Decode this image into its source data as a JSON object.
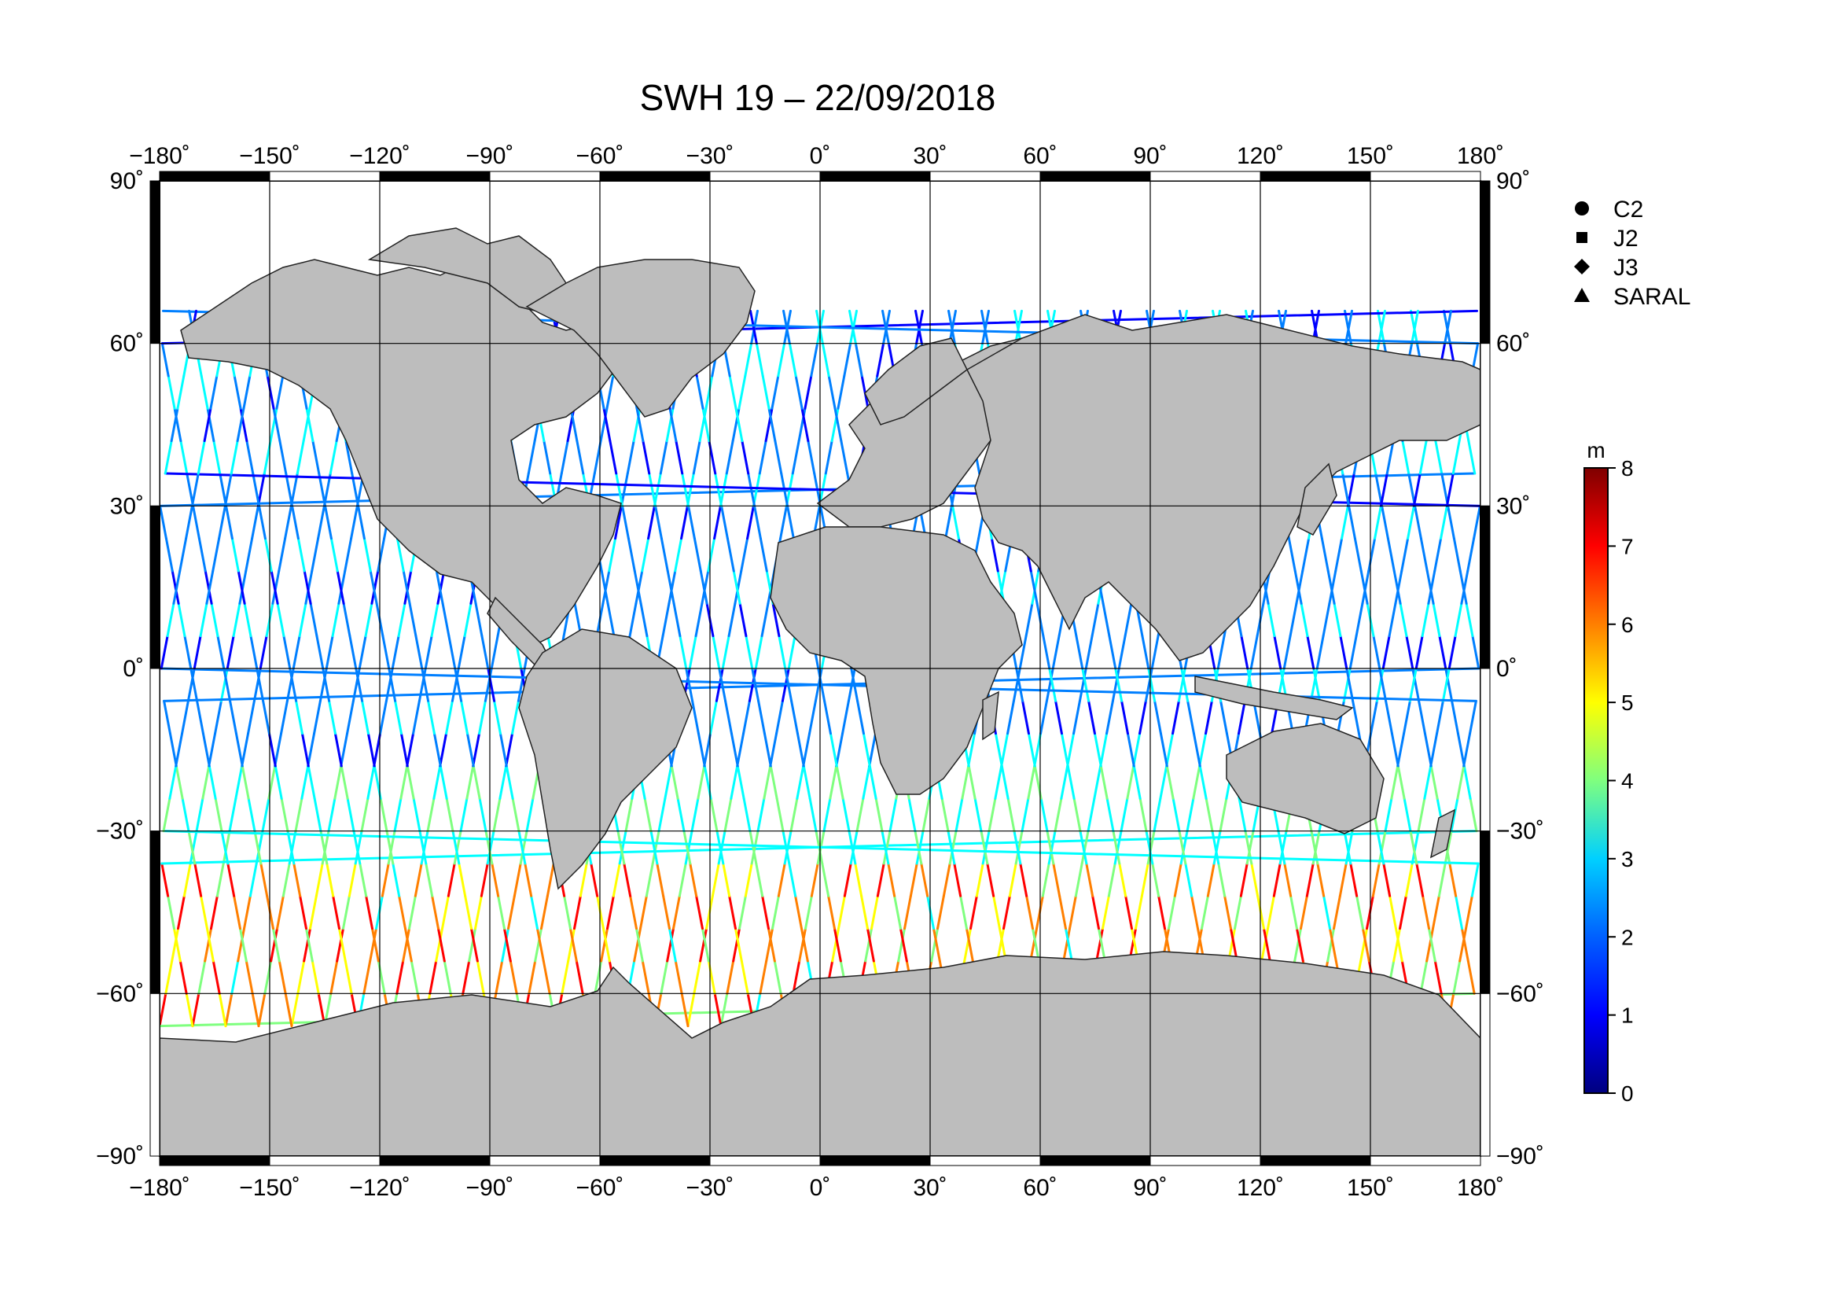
{
  "title": "SWH 19 – 22/09/2018",
  "lon_ticks": [
    {
      "value": -180,
      "label": "−180˚"
    },
    {
      "value": -150,
      "label": "−150˚"
    },
    {
      "value": -120,
      "label": "−120˚"
    },
    {
      "value": -90,
      "label": "−90˚"
    },
    {
      "value": -60,
      "label": "−60˚"
    },
    {
      "value": -30,
      "label": "−30˚"
    },
    {
      "value": 0,
      "label": "0˚"
    },
    {
      "value": 30,
      "label": "30˚"
    },
    {
      "value": 60,
      "label": "60˚"
    },
    {
      "value": 90,
      "label": "90˚"
    },
    {
      "value": 120,
      "label": "120˚"
    },
    {
      "value": 150,
      "label": "150˚"
    },
    {
      "value": 180,
      "label": "180˚"
    }
  ],
  "lat_ticks_left": [
    {
      "value": 90,
      "label": "90˚"
    },
    {
      "value": 60,
      "label": "60˚"
    },
    {
      "value": 30,
      "label": "30˚"
    },
    {
      "value": 0,
      "label": "0˚"
    },
    {
      "value": -30,
      "label": "−30˚"
    },
    {
      "value": -60,
      "label": "−60˚"
    },
    {
      "value": -90,
      "label": "−90˚"
    }
  ],
  "lat_ticks_right": [
    {
      "value": 90,
      "label": "90˚"
    },
    {
      "value": 60,
      "label": "60˚"
    },
    {
      "value": 30,
      "label": "30˚"
    },
    {
      "value": 0,
      "label": "0˚"
    },
    {
      "value": -30,
      "label": "−30˚"
    },
    {
      "value": -60,
      "label": "−60˚"
    },
    {
      "value": -90,
      "label": "−90˚"
    }
  ],
  "legend": [
    {
      "label": "C2",
      "symbol": "circle"
    },
    {
      "label": "J2",
      "symbol": "square"
    },
    {
      "label": "J3",
      "symbol": "diamond"
    },
    {
      "label": "SARAL",
      "symbol": "triangle"
    }
  ],
  "colorbar": {
    "unit": "m",
    "min": 0,
    "max": 8,
    "ticks": [
      "0",
      "1",
      "2",
      "3",
      "4",
      "5",
      "6",
      "7",
      "8"
    ],
    "colors": [
      "#00007f",
      "#0000ff",
      "#007fff",
      "#00ffff",
      "#7fff7f",
      "#ffff00",
      "#ff7f00",
      "#ff0000",
      "#7f0000"
    ]
  },
  "colors": {
    "land": "#bdbdbd",
    "ocean": "#ffffff",
    "grid": "#000000",
    "frame": "#000000"
  },
  "map": {
    "projection": "equirectangular",
    "lon_range": [
      -180,
      180
    ],
    "lat_range": [
      -90,
      90
    ],
    "grid_step_deg": 30
  }
}
